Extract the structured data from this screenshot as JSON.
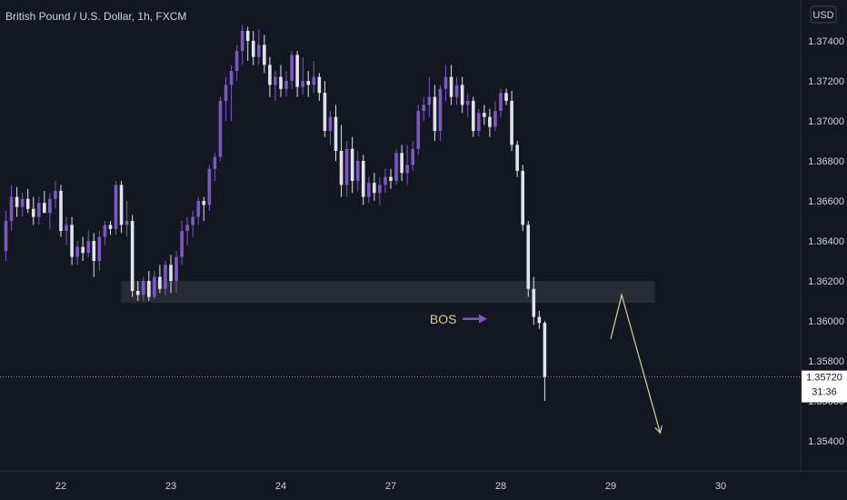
{
  "chart_data": {
    "type": "candlestick",
    "title": "British Pound / U.S. Dollar, 1h, FXCM",
    "currency": "USD",
    "y_ticks": [
      1.374,
      1.372,
      1.37,
      1.368,
      1.366,
      1.364,
      1.362,
      1.36,
      1.358,
      1.356,
      1.354
    ],
    "y_tick_labels": [
      "1.37400",
      "1.37200",
      "1.37000",
      "1.36800",
      "1.36600",
      "1.36400",
      "1.36200",
      "1.36000",
      "1.35800",
      "1.35600",
      "1.35400"
    ],
    "ylim": [
      1.3525,
      1.3755
    ],
    "x_tick_labels": [
      "22",
      "23",
      "24",
      "27",
      "28",
      "29",
      "30"
    ],
    "x_tick_index": [
      10,
      30,
      50,
      70,
      90,
      110,
      130
    ],
    "last_price": "1.35720",
    "countdown": "31:36",
    "colors": {
      "up": "#7e57c2",
      "down": "#e0e3eb",
      "background": "#131722",
      "zone": "#2a2e39",
      "projection": "#d8d39a",
      "bos_arrow": "#7e57c2"
    },
    "zone": {
      "from_index": 21,
      "to_index": 118,
      "low": 1.3609,
      "high": 1.362
    },
    "annotation": {
      "text": "BOS",
      "index": 88,
      "price": 1.3601
    },
    "projection": [
      {
        "index": 110,
        "price": 1.3591
      },
      {
        "index": 112,
        "price": 1.3613
      },
      {
        "index": 119,
        "price": 1.3544
      }
    ],
    "candles": [
      [
        1.3635,
        1.3655,
        1.363,
        1.365
      ],
      [
        1.365,
        1.3668,
        1.3645,
        1.3662
      ],
      [
        1.3662,
        1.3667,
        1.3652,
        1.3657
      ],
      [
        1.3657,
        1.3664,
        1.3652,
        1.3661
      ],
      [
        1.3661,
        1.3666,
        1.3654,
        1.3656
      ],
      [
        1.3656,
        1.3662,
        1.3648,
        1.3652
      ],
      [
        1.3652,
        1.3662,
        1.3648,
        1.3659
      ],
      [
        1.3659,
        1.3665,
        1.3654,
        1.3654
      ],
      [
        1.3654,
        1.3664,
        1.3646,
        1.3661
      ],
      [
        1.3661,
        1.367,
        1.3656,
        1.3665
      ],
      [
        1.3665,
        1.3668,
        1.3642,
        1.3645
      ],
      [
        1.3645,
        1.3652,
        1.3638,
        1.3648
      ],
      [
        1.3648,
        1.3652,
        1.3628,
        1.3632
      ],
      [
        1.3632,
        1.364,
        1.3628,
        1.3637
      ],
      [
        1.3637,
        1.3642,
        1.363,
        1.3634
      ],
      [
        1.3634,
        1.3645,
        1.3632,
        1.364
      ],
      [
        1.364,
        1.3644,
        1.3622,
        1.363
      ],
      [
        1.363,
        1.3645,
        1.3625,
        1.3642
      ],
      [
        1.3642,
        1.365,
        1.3638,
        1.3648
      ],
      [
        1.3648,
        1.365,
        1.3643,
        1.3646
      ],
      [
        1.3646,
        1.367,
        1.3643,
        1.3668
      ],
      [
        1.3668,
        1.367,
        1.3644,
        1.3648
      ],
      [
        1.3648,
        1.366,
        1.3642,
        1.365
      ],
      [
        1.365,
        1.3653,
        1.3612,
        1.3615
      ],
      [
        1.3615,
        1.362,
        1.361,
        1.3613
      ],
      [
        1.3613,
        1.3622,
        1.361,
        1.362
      ],
      [
        1.362,
        1.3625,
        1.361,
        1.3612
      ],
      [
        1.3612,
        1.3625,
        1.3611,
        1.3622
      ],
      [
        1.3622,
        1.3628,
        1.3614,
        1.3616
      ],
      [
        1.3616,
        1.363,
        1.3613,
        1.3628
      ],
      [
        1.3628,
        1.3633,
        1.3614,
        1.362
      ],
      [
        1.362,
        1.3635,
        1.3614,
        1.3632
      ],
      [
        1.3632,
        1.365,
        1.3628,
        1.3645
      ],
      [
        1.3645,
        1.3652,
        1.3638,
        1.3648
      ],
      [
        1.3648,
        1.3655,
        1.3642,
        1.3652
      ],
      [
        1.3652,
        1.3662,
        1.3648,
        1.366
      ],
      [
        1.366,
        1.3662,
        1.365,
        1.3658
      ],
      [
        1.3658,
        1.3678,
        1.3655,
        1.3676
      ],
      [
        1.3676,
        1.3684,
        1.367,
        1.3682
      ],
      [
        1.3682,
        1.3712,
        1.368,
        1.371
      ],
      [
        1.371,
        1.3722,
        1.37,
        1.3718
      ],
      [
        1.3718,
        1.3728,
        1.37,
        1.3725
      ],
      [
        1.3725,
        1.3738,
        1.372,
        1.3735
      ],
      [
        1.3735,
        1.3748,
        1.3728,
        1.3745
      ],
      [
        1.3745,
        1.3747,
        1.373,
        1.374
      ],
      [
        1.374,
        1.3745,
        1.3728,
        1.3732
      ],
      [
        1.3732,
        1.3746,
        1.3728,
        1.3738
      ],
      [
        1.3738,
        1.3743,
        1.3724,
        1.3728
      ],
      [
        1.3728,
        1.3732,
        1.3712,
        1.3718
      ],
      [
        1.3718,
        1.3725,
        1.371,
        1.3722
      ],
      [
        1.3722,
        1.3728,
        1.3712,
        1.3716
      ],
      [
        1.3716,
        1.3725,
        1.3712,
        1.372
      ],
      [
        1.372,
        1.3735,
        1.3716,
        1.3733
      ],
      [
        1.3733,
        1.3735,
        1.3712,
        1.3717
      ],
      [
        1.3717,
        1.3732,
        1.3713,
        1.372
      ],
      [
        1.372,
        1.3725,
        1.3712,
        1.3718
      ],
      [
        1.3718,
        1.373,
        1.3714,
        1.3722
      ],
      [
        1.3722,
        1.3724,
        1.371,
        1.3714
      ],
      [
        1.3714,
        1.372,
        1.3692,
        1.3695
      ],
      [
        1.3695,
        1.3705,
        1.3688,
        1.3702
      ],
      [
        1.3702,
        1.3708,
        1.368,
        1.3685
      ],
      [
        1.3685,
        1.3698,
        1.3662,
        1.3668
      ],
      [
        1.3668,
        1.369,
        1.3662,
        1.3686
      ],
      [
        1.3686,
        1.3692,
        1.3664,
        1.367
      ],
      [
        1.367,
        1.3685,
        1.3665,
        1.368
      ],
      [
        1.368,
        1.3683,
        1.3658,
        1.3662
      ],
      [
        1.3662,
        1.3672,
        1.3659,
        1.3669
      ],
      [
        1.3669,
        1.3674,
        1.366,
        1.3664
      ],
      [
        1.3664,
        1.3672,
        1.3658,
        1.3668
      ],
      [
        1.3668,
        1.3676,
        1.3664,
        1.3672
      ],
      [
        1.3672,
        1.3676,
        1.3666,
        1.367
      ],
      [
        1.367,
        1.3686,
        1.3668,
        1.3684
      ],
      [
        1.3684,
        1.3688,
        1.367,
        1.3674
      ],
      [
        1.3674,
        1.3688,
        1.3668,
        1.3678
      ],
      [
        1.3678,
        1.369,
        1.3675,
        1.3686
      ],
      [
        1.3686,
        1.3708,
        1.3683,
        1.3705
      ],
      [
        1.3705,
        1.3712,
        1.37,
        1.3708
      ],
      [
        1.3708,
        1.3722,
        1.3702,
        1.3712
      ],
      [
        1.3712,
        1.3718,
        1.369,
        1.3695
      ],
      [
        1.3695,
        1.3718,
        1.369,
        1.3716
      ],
      [
        1.3716,
        1.3728,
        1.371,
        1.3722
      ],
      [
        1.3722,
        1.3728,
        1.3708,
        1.3712
      ],
      [
        1.3712,
        1.3722,
        1.3708,
        1.3718
      ],
      [
        1.3718,
        1.3722,
        1.3704,
        1.3708
      ],
      [
        1.3708,
        1.3714,
        1.3702,
        1.371
      ],
      [
        1.371,
        1.3712,
        1.3692,
        1.3695
      ],
      [
        1.3695,
        1.3706,
        1.3692,
        1.3704
      ],
      [
        1.3704,
        1.3708,
        1.3698,
        1.3702
      ],
      [
        1.3702,
        1.3706,
        1.3692,
        1.3697
      ],
      [
        1.3697,
        1.371,
        1.3695,
        1.3705
      ],
      [
        1.3705,
        1.3716,
        1.3702,
        1.3714
      ],
      [
        1.3714,
        1.3716,
        1.3708,
        1.371
      ],
      [
        1.371,
        1.3715,
        1.3685,
        1.3688
      ],
      [
        1.3688,
        1.369,
        1.3672,
        1.3675
      ],
      [
        1.3675,
        1.3678,
        1.3645,
        1.3648
      ],
      [
        1.3648,
        1.365,
        1.3612,
        1.3616
      ],
      [
        1.3616,
        1.3622,
        1.3598,
        1.3602
      ],
      [
        1.3602,
        1.3605,
        1.3596,
        1.3599
      ],
      [
        1.3599,
        1.36,
        1.356,
        1.3572
      ]
    ]
  }
}
